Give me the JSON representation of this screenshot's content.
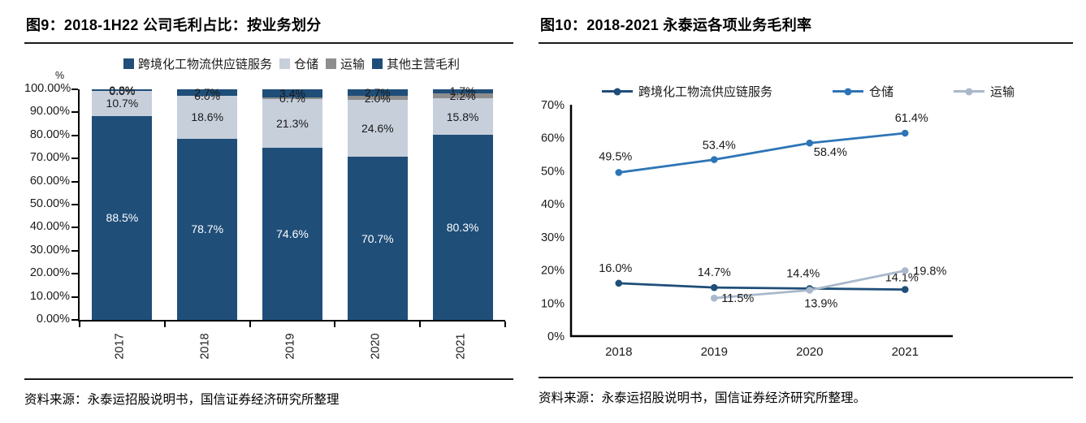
{
  "left_panel": {
    "title": "图9：2018-1H22 公司毛利占比：按业务划分",
    "source": "资料来源：永泰运招股说明书，国信证券经济研究所整理"
  },
  "right_panel": {
    "title": "图10：2018-2021 永泰运各项业务毛利率",
    "source": "资料来源：永泰运招股说明书，国信证券经济研究所整理。"
  },
  "colors": {
    "navy": "#1F4E79",
    "light_blue_gray": "#C7CFDB",
    "gray": "#8E8E8E",
    "medium_blue": "#2E75B6",
    "light_steel": "#A9B8CB",
    "axis": "#000000",
    "text": "#1A1A1A"
  },
  "chart_data": [
    {
      "type": "bar",
      "stacked": true,
      "title": "图9：2018-1H22 公司毛利占比：按业务划分",
      "unit_label": "%",
      "categories": [
        "2017",
        "2018",
        "2019",
        "2020",
        "2021"
      ],
      "series": [
        {
          "name": "跨境化工物流供应链服务",
          "color": "#1F4E79",
          "label_color": "#FFFFFF",
          "values": [
            88.5,
            78.7,
            74.6,
            70.7,
            80.3
          ]
        },
        {
          "name": "仓储",
          "color": "#C7CFDB",
          "label_color": "#1A1A1A",
          "values": [
            10.7,
            18.6,
            21.3,
            24.6,
            15.8
          ]
        },
        {
          "name": "运输",
          "color": "#8E8E8E",
          "label_color": "#1A1A1A",
          "values": [
            0.0,
            0.0,
            0.7,
            2.0,
            2.2
          ]
        },
        {
          "name": "其他主营毛利",
          "color": "#1F4E79",
          "label_color": "#1A1A1A",
          "values": [
            0.8,
            2.7,
            3.4,
            2.7,
            1.7
          ]
        }
      ],
      "ylim": [
        0,
        100
      ],
      "yticks": [
        "100.00%",
        "90.00%",
        "80.00%",
        "70.00%",
        "60.00%",
        "50.00%",
        "40.00%",
        "30.00%",
        "20.00%",
        "10.00%",
        "0.00%"
      ],
      "legend_position": "top",
      "grid": false
    },
    {
      "type": "line",
      "title": "图10：2018-2021 永泰运各项业务毛利率",
      "categories": [
        "2018",
        "2019",
        "2020",
        "2021"
      ],
      "series": [
        {
          "name": "跨境化工物流供应链服务",
          "color": "#1F4E79",
          "values": [
            16.0,
            14.7,
            14.4,
            14.1
          ],
          "labels": [
            "16.0%",
            "14.7%",
            "14.4%",
            "14.1%"
          ],
          "label_offsets": [
            [
              -4,
              -14,
              "middle"
            ],
            [
              0,
              -14,
              "middle"
            ],
            [
              -8,
              -14,
              "middle"
            ],
            [
              -4,
              -10,
              "middle"
            ]
          ]
        },
        {
          "name": "仓储",
          "color": "#2E75B6",
          "values": [
            49.5,
            53.4,
            58.4,
            61.4
          ],
          "labels": [
            "49.5%",
            "53.4%",
            "58.4%",
            "61.4%"
          ],
          "label_offsets": [
            [
              -4,
              -15,
              "middle"
            ],
            [
              6,
              -13,
              "middle"
            ],
            [
              5,
              16,
              "start"
            ],
            [
              8,
              -14,
              "middle"
            ]
          ]
        },
        {
          "name": "运输",
          "color": "#A9B8CB",
          "values": [
            null,
            11.5,
            13.9,
            19.8
          ],
          "labels": [
            "",
            "11.5%",
            "13.9%",
            "19.8%"
          ],
          "label_offsets": [
            [
              0,
              0,
              "middle"
            ],
            [
              9,
              5,
              "start"
            ],
            [
              14,
              21,
              "middle"
            ],
            [
              10,
              5,
              "start"
            ]
          ]
        }
      ],
      "ylim": [
        0,
        70
      ],
      "yticks": [
        "70%",
        "60%",
        "50%",
        "40%",
        "30%",
        "20%",
        "10%",
        "0%"
      ],
      "legend_position": "top",
      "grid": false
    }
  ]
}
